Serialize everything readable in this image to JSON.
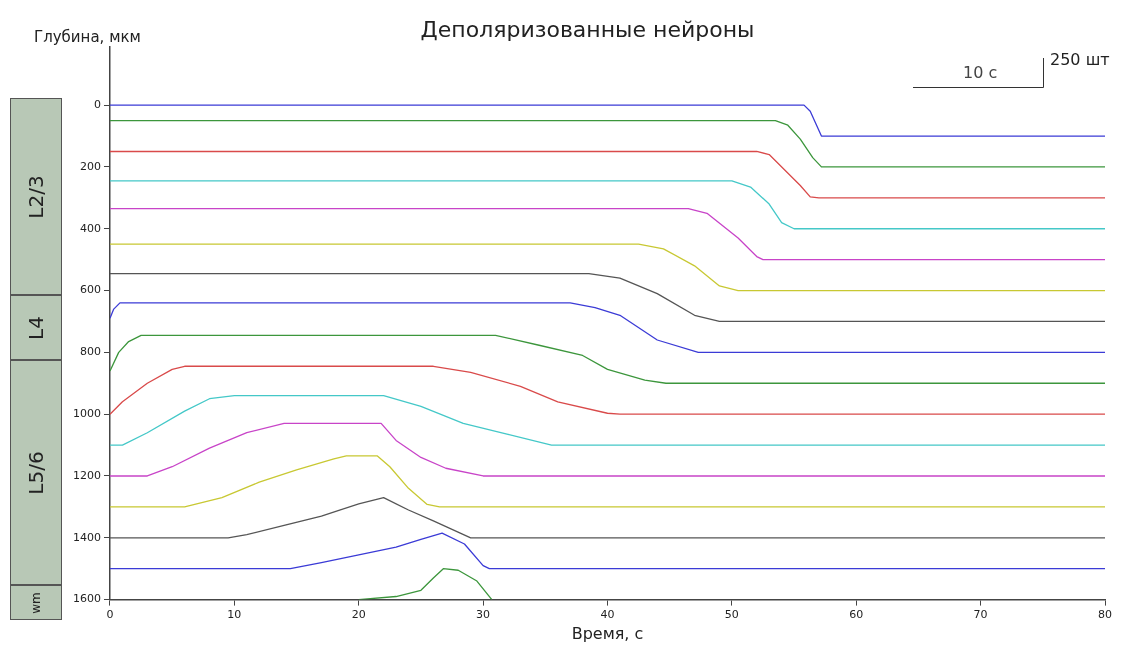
{
  "chart_data": {
    "type": "line",
    "title": "Деполяризованные нейроны",
    "xlabel": "Время, с",
    "ylabel": "Глубина, мкм",
    "annotations": [
      "L2/3",
      "L4",
      "L5/6",
      "wm",
      "10 с",
      "250 шт"
    ],
    "xlim": [
      0,
      80
    ],
    "xticks": [
      0,
      10,
      20,
      30,
      40,
      50,
      60,
      70,
      80
    ],
    "ylim": [
      1600,
      -190
    ],
    "yticks": [
      0,
      200,
      400,
      600,
      800,
      1000,
      1200,
      1400,
      1600
    ],
    "grid": false,
    "legend": false,
    "marker": "none",
    "line_style": "solid",
    "series": [
      {
        "color": "#3b3bd6",
        "x": [
          0,
          55.8,
          56.3,
          57.2,
          80
        ],
        "values": [
          0,
          0,
          20,
          100,
          100
        ]
      },
      {
        "color": "#3c963c",
        "x": [
          0,
          53.5,
          54.5,
          55.5,
          56.5,
          57.2,
          80
        ],
        "values": [
          50,
          50,
          65,
          110,
          170,
          200,
          200
        ]
      },
      {
        "color": "#d94a4a",
        "x": [
          0,
          52,
          53,
          55.5,
          56.3,
          57,
          80
        ],
        "values": [
          150,
          150,
          160,
          260,
          297,
          300,
          300
        ]
      },
      {
        "color": "#44c8c8",
        "x": [
          0,
          50,
          51.5,
          53,
          54,
          55,
          80
        ],
        "values": [
          245,
          245,
          265,
          320,
          380,
          400,
          400
        ]
      },
      {
        "color": "#c844c8",
        "x": [
          0,
          46.5,
          48,
          50.5,
          52,
          52.5,
          80
        ],
        "values": [
          335,
          335,
          350,
          430,
          490,
          500,
          500
        ]
      },
      {
        "color": "#c8c832",
        "x": [
          0,
          42.5,
          44.5,
          47,
          49,
          50.5,
          80
        ],
        "values": [
          450,
          450,
          465,
          520,
          585,
          600,
          600
        ]
      },
      {
        "color": "#555555",
        "x": [
          0,
          38.5,
          41,
          44,
          47,
          49,
          80
        ],
        "values": [
          545,
          545,
          560,
          610,
          680,
          700,
          700
        ]
      },
      {
        "color": "#3b3bd6",
        "x": [
          0,
          0.3,
          0.8,
          37,
          39,
          41,
          44,
          47.3,
          80
        ],
        "values": [
          690,
          660,
          640,
          640,
          655,
          680,
          760,
          800,
          800
        ]
      },
      {
        "color": "#3c963c",
        "x": [
          0,
          0.7,
          1.5,
          2.5,
          31,
          34.5,
          38,
          40,
          43,
          44.7,
          80
        ],
        "values": [
          860,
          800,
          765,
          745,
          745,
          777,
          810,
          855,
          890,
          900,
          900
        ]
      },
      {
        "color": "#d94a4a",
        "x": [
          0,
          1,
          3,
          5,
          6,
          26,
          29,
          33,
          36,
          40,
          41,
          80
        ],
        "values": [
          1000,
          960,
          900,
          855,
          845,
          845,
          865,
          910,
          960,
          997,
          1000,
          1000
        ]
      },
      {
        "color": "#44c8c8",
        "x": [
          0,
          1,
          3,
          6,
          8,
          10,
          22,
          25,
          28.4,
          32,
          35.5,
          80
        ],
        "values": [
          1100,
          1100,
          1060,
          990,
          950,
          940,
          940,
          975,
          1030,
          1065,
          1100,
          1100
        ]
      },
      {
        "color": "#c844c8",
        "x": [
          0,
          3,
          5,
          8,
          11,
          14,
          21.8,
          23,
          25,
          27,
          30,
          80
        ],
        "values": [
          1200,
          1200,
          1170,
          1110,
          1060,
          1030,
          1030,
          1085,
          1140,
          1175,
          1200,
          1200
        ]
      },
      {
        "color": "#c8c832",
        "x": [
          0,
          6,
          9,
          12,
          15,
          18,
          19,
          21.5,
          22.5,
          24,
          25.5,
          26.5,
          80
        ],
        "values": [
          1300,
          1300,
          1270,
          1220,
          1180,
          1145,
          1135,
          1135,
          1170,
          1240,
          1292,
          1300,
          1300
        ]
      },
      {
        "color": "#555555",
        "x": [
          0,
          9.5,
          11,
          14,
          17,
          20,
          22,
          24,
          26,
          29,
          80
        ],
        "values": [
          1400,
          1400,
          1390,
          1360,
          1330,
          1290,
          1270,
          1310,
          1345,
          1400,
          1400
        ]
      },
      {
        "color": "#3b3bd6",
        "x": [
          0,
          14.5,
          17,
          20,
          23,
          25,
          26.7,
          28.5,
          30,
          30.5,
          80
        ],
        "values": [
          1500,
          1500,
          1480,
          1455,
          1430,
          1405,
          1385,
          1420,
          1490,
          1500,
          1500
        ]
      },
      {
        "color": "#3c963c",
        "x": [
          20,
          23,
          25,
          26,
          26.8,
          28,
          29.5,
          30.7
        ],
        "values": [
          1600,
          1590,
          1570,
          1530,
          1500,
          1505,
          1540,
          1600
        ]
      }
    ]
  }
}
